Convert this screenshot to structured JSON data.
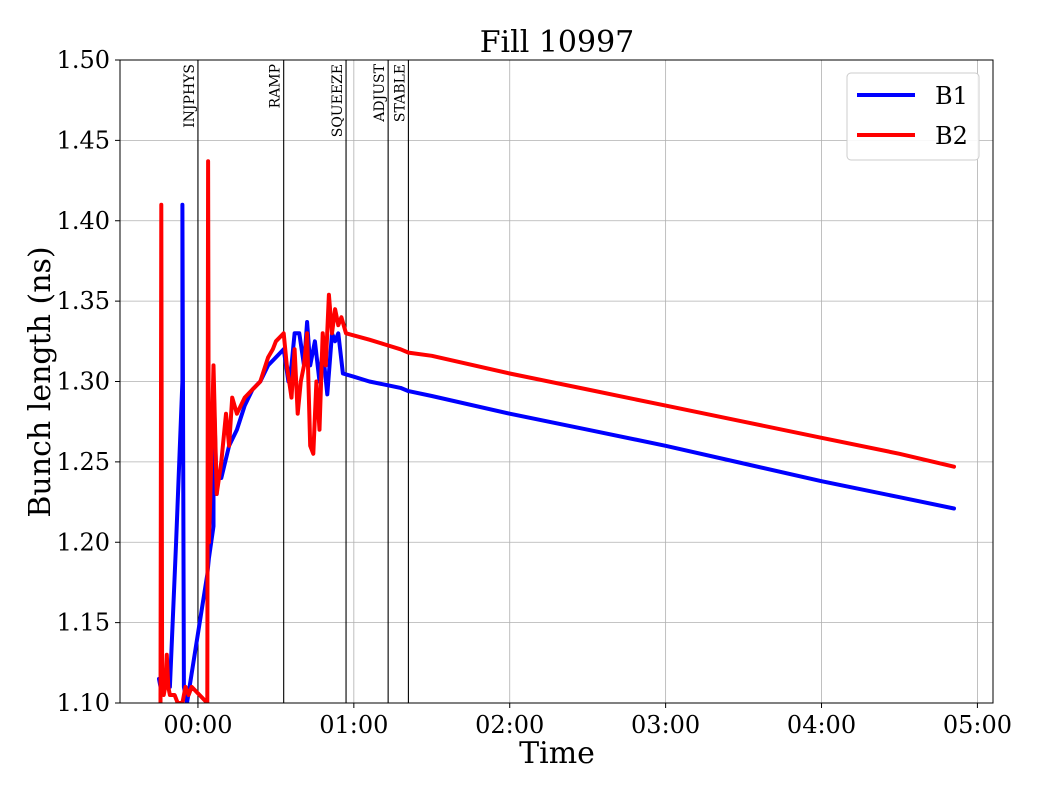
{
  "chart_data": {
    "type": "line",
    "title": "Fill 10997",
    "xlabel": "Time",
    "ylabel": "Bunch length (ns)",
    "x_unit": "hours",
    "xlim": [
      -0.5,
      5.1
    ],
    "ylim": [
      1.1,
      1.5
    ],
    "x_ticks": [
      0,
      1,
      2,
      3,
      4,
      5
    ],
    "x_tick_labels": [
      "00:00",
      "01:00",
      "02:00",
      "03:00",
      "04:00",
      "05:00"
    ],
    "y_ticks": [
      1.1,
      1.15,
      1.2,
      1.25,
      1.3,
      1.35,
      1.4,
      1.45,
      1.5
    ],
    "y_tick_labels": [
      "1.10",
      "1.15",
      "1.20",
      "1.25",
      "1.30",
      "1.35",
      "1.40",
      "1.45",
      "1.50"
    ],
    "grid": true,
    "legend_position": "top-right",
    "phases": [
      {
        "label": "INJPHYS",
        "x": 0.0
      },
      {
        "label": "RAMP",
        "x": 0.55
      },
      {
        "label": "SQUEEZE",
        "x": 0.95
      },
      {
        "label": "ADJUST",
        "x": 1.22
      },
      {
        "label": "STABLE",
        "x": 1.35
      }
    ],
    "series": [
      {
        "name": "B1",
        "color": "#0000ff",
        "x": [
          -0.25,
          -0.24,
          -0.22,
          -0.2,
          -0.18,
          -0.14,
          -0.1,
          -0.1,
          -0.09,
          -0.07,
          0.06,
          0.07,
          0.1,
          0.1,
          0.12,
          0.12,
          0.15,
          0.2,
          0.25,
          0.3,
          0.35,
          0.4,
          0.45,
          0.5,
          0.55,
          0.58,
          0.6,
          0.62,
          0.65,
          0.68,
          0.7,
          0.72,
          0.75,
          0.78,
          0.8,
          0.83,
          0.86,
          0.88,
          0.9,
          0.93,
          1.0,
          1.1,
          1.2,
          1.3,
          1.35,
          1.5,
          2.0,
          2.5,
          3.0,
          3.5,
          4.0,
          4.5,
          4.85
        ],
        "y": [
          1.115,
          1.11,
          1.12,
          1.11,
          1.11,
          1.2,
          1.3,
          1.41,
          1.11,
          1.1,
          1.18,
          1.19,
          1.21,
          1.3,
          1.23,
          1.24,
          1.24,
          1.26,
          1.27,
          1.285,
          1.295,
          1.3,
          1.31,
          1.315,
          1.32,
          1.3,
          1.31,
          1.33,
          1.33,
          1.31,
          1.337,
          1.31,
          1.325,
          1.3,
          1.32,
          1.292,
          1.33,
          1.325,
          1.33,
          1.305,
          1.303,
          1.3,
          1.298,
          1.296,
          1.294,
          1.291,
          1.28,
          1.27,
          1.26,
          1.249,
          1.238,
          1.228,
          1.221
        ]
      },
      {
        "name": "B2",
        "color": "#ff0000",
        "x": [
          -0.24,
          -0.235,
          -0.23,
          -0.22,
          -0.21,
          -0.2,
          -0.19,
          -0.18,
          -0.15,
          -0.13,
          -0.12,
          -0.1,
          -0.08,
          -0.06,
          -0.04,
          0.06,
          0.065,
          0.07,
          0.08,
          0.1,
          0.12,
          0.15,
          0.18,
          0.2,
          0.22,
          0.25,
          0.3,
          0.35,
          0.4,
          0.45,
          0.48,
          0.5,
          0.55,
          0.57,
          0.6,
          0.62,
          0.64,
          0.66,
          0.68,
          0.7,
          0.72,
          0.74,
          0.76,
          0.78,
          0.8,
          0.82,
          0.84,
          0.86,
          0.88,
          0.9,
          0.92,
          0.95,
          1.1,
          1.2,
          1.3,
          1.35,
          1.5,
          2.0,
          2.5,
          3.0,
          3.5,
          4.0,
          4.5,
          4.85
        ],
        "y": [
          1.1,
          1.41,
          1.12,
          1.105,
          1.11,
          1.13,
          1.11,
          1.105,
          1.105,
          1.1,
          1.1,
          1.1,
          1.11,
          1.105,
          1.11,
          1.1,
          1.437,
          1.2,
          1.23,
          1.31,
          1.23,
          1.25,
          1.28,
          1.26,
          1.29,
          1.28,
          1.29,
          1.295,
          1.3,
          1.315,
          1.32,
          1.325,
          1.33,
          1.31,
          1.29,
          1.32,
          1.28,
          1.3,
          1.31,
          1.33,
          1.26,
          1.255,
          1.3,
          1.27,
          1.33,
          1.31,
          1.354,
          1.33,
          1.345,
          1.335,
          1.34,
          1.33,
          1.326,
          1.323,
          1.32,
          1.318,
          1.316,
          1.305,
          1.295,
          1.285,
          1.275,
          1.265,
          1.255,
          1.247
        ]
      }
    ]
  }
}
